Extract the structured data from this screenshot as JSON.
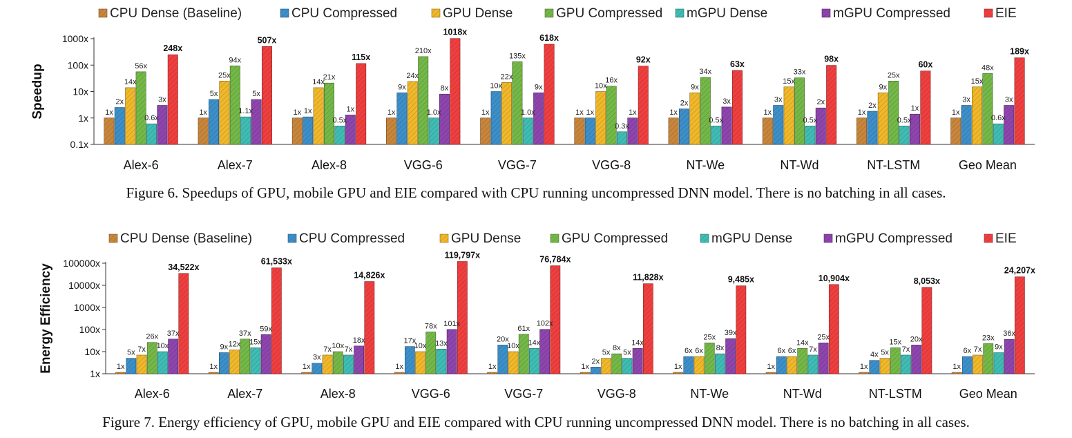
{
  "chart_data": [
    {
      "type": "bar",
      "ylabel": "Speedup",
      "y_scale": "log",
      "ylim": [
        0.1,
        1000
      ],
      "yticks": [
        "0.1x",
        "1x",
        "10x",
        "100x",
        "1000x"
      ],
      "legend_placement": "top",
      "categories": [
        "Alex-6",
        "Alex-7",
        "Alex-8",
        "VGG-6",
        "VGG-7",
        "VGG-8",
        "NT-We",
        "NT-Wd",
        "NT-LSTM",
        "Geo Mean"
      ],
      "series": [
        {
          "name": "CPU Dense (Baseline)",
          "color": "#c8863c",
          "values": [
            1,
            1,
            1,
            1,
            1,
            1,
            1,
            1,
            1,
            1
          ],
          "labels": [
            "1x",
            "1x",
            "1x",
            "1x",
            "1x",
            "1x",
            "1x",
            "1x",
            "1x",
            "1x"
          ]
        },
        {
          "name": "CPU Compressed",
          "color": "#3d8fc9",
          "values": [
            2.5,
            5,
            1.1,
            9,
            10,
            1,
            2.2,
            3,
            1.8,
            3
          ],
          "labels": [
            "2x",
            "5x",
            "1x",
            "9x",
            "10x",
            "1x",
            "2x",
            "3x",
            "2x",
            "3x"
          ]
        },
        {
          "name": "GPU Dense",
          "color": "#f0b82a",
          "values": [
            14,
            25,
            14,
            24,
            22,
            10,
            9,
            15,
            9,
            15
          ],
          "labels": [
            "14x",
            "25x",
            "14x",
            "24x",
            "22x",
            "10x",
            "9x",
            "15x",
            "9x",
            "15x"
          ]
        },
        {
          "name": "GPU Compressed",
          "color": "#74b848",
          "values": [
            56,
            94,
            21,
            210,
            135,
            16,
            34,
            33,
            25,
            48
          ],
          "labels": [
            "56x",
            "94x",
            "21x",
            "210x",
            "135x",
            "16x",
            "34x",
            "33x",
            "25x",
            "48x"
          ]
        },
        {
          "name": "mGPU Dense",
          "color": "#3fbdb4",
          "values": [
            0.6,
            1.1,
            0.5,
            1.0,
            1.0,
            0.3,
            0.5,
            0.5,
            0.5,
            0.6
          ],
          "labels": [
            "0.6x",
            "1.1x",
            "0.5x",
            "1.0x",
            "1.0x",
            "0.3x",
            "0.5x",
            "0.5x",
            "0.5x",
            "0.6x"
          ]
        },
        {
          "name": "mGPU Compressed",
          "color": "#8e45ad",
          "values": [
            3,
            5,
            1.3,
            8,
            9,
            1,
            2.6,
            2.4,
            1.4,
            3
          ],
          "labels": [
            "3x",
            "5x",
            "1x",
            "8x",
            "9x",
            "1x",
            "3x",
            "2x",
            "1x",
            "3x"
          ]
        },
        {
          "name": "EIE",
          "color": "#ef3f3f",
          "values": [
            248,
            507,
            115,
            1018,
            618,
            92,
            63,
            98,
            60,
            189
          ],
          "labels": [
            "248x",
            "507x",
            "115x",
            "1018x",
            "618x",
            "92x",
            "63x",
            "98x",
            "60x",
            "189x"
          ]
        }
      ]
    },
    {
      "type": "bar",
      "ylabel": "Energy Efficiency",
      "y_scale": "log",
      "ylim": [
        1,
        100000
      ],
      "yticks": [
        "1x",
        "10x",
        "100x",
        "1000x",
        "10000x",
        "100000x"
      ],
      "legend_placement": "top",
      "categories": [
        "Alex-6",
        "Alex-7",
        "Alex-8",
        "VGG-6",
        "VGG-7",
        "VGG-8",
        "NT-We",
        "NT-Wd",
        "NT-LSTM",
        "Geo Mean"
      ],
      "series": [
        {
          "name": "CPU Dense (Baseline)",
          "color": "#c8863c",
          "values": [
            1,
            1,
            1,
            1,
            1,
            1,
            1,
            1,
            1,
            1
          ],
          "labels": [
            "1x",
            "1x",
            "1x",
            "1x",
            "1x",
            "1x",
            "1x",
            "1x",
            "1x",
            "1x"
          ]
        },
        {
          "name": "CPU Compressed",
          "color": "#3d8fc9",
          "values": [
            5,
            9,
            3,
            17,
            20,
            2,
            6,
            6,
            4,
            6
          ],
          "labels": [
            "5x",
            "9x",
            "3x",
            "17x",
            "20x",
            "2x",
            "6x",
            "6x",
            "4x",
            "6x"
          ]
        },
        {
          "name": "GPU Dense",
          "color": "#f0b82a",
          "values": [
            7,
            12,
            7,
            10,
            10,
            5,
            6,
            6,
            5,
            7
          ],
          "labels": [
            "7x",
            "12x",
            "7x",
            "10x",
            "10x",
            "5x",
            "6x",
            "6x",
            "5x",
            "7x"
          ]
        },
        {
          "name": "GPU Compressed",
          "color": "#74b848",
          "values": [
            26,
            37,
            10,
            78,
            61,
            8,
            25,
            14,
            15,
            23
          ],
          "labels": [
            "26x",
            "37x",
            "10x",
            "78x",
            "61x",
            "8x",
            "25x",
            "14x",
            "15x",
            "23x"
          ]
        },
        {
          "name": "mGPU Dense",
          "color": "#3fbdb4",
          "values": [
            10,
            15,
            7,
            13,
            14,
            5,
            8,
            7,
            7,
            9
          ],
          "labels": [
            "10x",
            "15x",
            "7x",
            "13x",
            "14x",
            "5x",
            "8x",
            "7x",
            "7x",
            "9x"
          ]
        },
        {
          "name": "mGPU Compressed",
          "color": "#8e45ad",
          "values": [
            37,
            59,
            18,
            101,
            102,
            14,
            39,
            25,
            20,
            36
          ],
          "labels": [
            "37x",
            "59x",
            "18x",
            "101x",
            "102x",
            "14x",
            "39x",
            "25x",
            "20x",
            "36x"
          ]
        },
        {
          "name": "EIE",
          "color": "#ef3f3f",
          "values": [
            34522,
            61533,
            14826,
            119797,
            76784,
            11828,
            9485,
            10904,
            8053,
            24207
          ],
          "labels": [
            "34,522x",
            "61,533x",
            "14,826x",
            "119,797x",
            "76,784x",
            "11,828x",
            "9,485x",
            "10,904x",
            "8,053x",
            "24,207x"
          ]
        }
      ]
    }
  ],
  "captions": {
    "figure6": "Figure 6.   Speedups of GPU, mobile GPU and EIE compared with CPU running uncompressed DNN model. There is no batching in all cases.",
    "figure7": "Figure 7.   Energy efficiency of GPU, mobile GPU and EIE compared with CPU running uncompressed DNN model. There is no batching in all cases."
  }
}
